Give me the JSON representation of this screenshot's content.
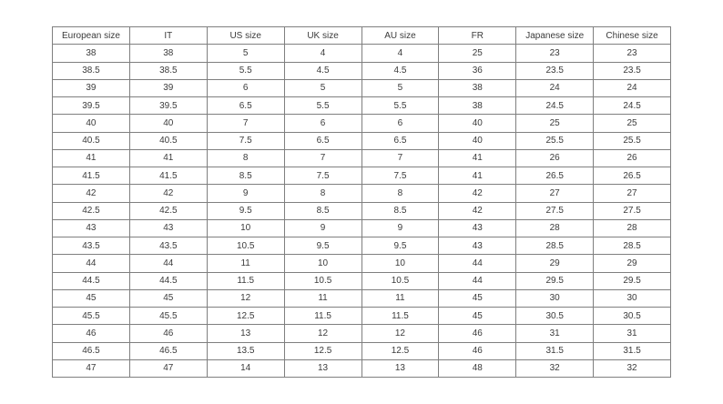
{
  "page": {
    "background": "#ffffff"
  },
  "table": {
    "name": "shoe-size-conversion-table",
    "border_color": "#7f7f7f",
    "text_color": "#3b3b3b",
    "headers": [
      "European size",
      "IT",
      "US size",
      "UK size",
      "AU size",
      "FR",
      "Japanese size",
      "Chinese size"
    ],
    "rows": [
      [
        "38",
        "38",
        "5",
        "4",
        "4",
        "25",
        "23",
        "23"
      ],
      [
        "38.5",
        "38.5",
        "5.5",
        "4.5",
        "4.5",
        "36",
        "23.5",
        "23.5"
      ],
      [
        "39",
        "39",
        "6",
        "5",
        "5",
        "38",
        "24",
        "24"
      ],
      [
        "39.5",
        "39.5",
        "6.5",
        "5.5",
        "5.5",
        "38",
        "24.5",
        "24.5"
      ],
      [
        "40",
        "40",
        "7",
        "6",
        "6",
        "40",
        "25",
        "25"
      ],
      [
        "40.5",
        "40.5",
        "7.5",
        "6.5",
        "6.5",
        "40",
        "25.5",
        "25.5"
      ],
      [
        "41",
        "41",
        "8",
        "7",
        "7",
        "41",
        "26",
        "26"
      ],
      [
        "41.5",
        "41.5",
        "8.5",
        "7.5",
        "7.5",
        "41",
        "26.5",
        "26.5"
      ],
      [
        "42",
        "42",
        "9",
        "8",
        "8",
        "42",
        "27",
        "27"
      ],
      [
        "42.5",
        "42.5",
        "9.5",
        "8.5",
        "8.5",
        "42",
        "27.5",
        "27.5"
      ],
      [
        "43",
        "43",
        "10",
        "9",
        "9",
        "43",
        "28",
        "28"
      ],
      [
        "43.5",
        "43.5",
        "10.5",
        "9.5",
        "9.5",
        "43",
        "28.5",
        "28.5"
      ],
      [
        "44",
        "44",
        "11",
        "10",
        "10",
        "44",
        "29",
        "29"
      ],
      [
        "44.5",
        "44.5",
        "11.5",
        "10.5",
        "10.5",
        "44",
        "29.5",
        "29.5"
      ],
      [
        "45",
        "45",
        "12",
        "11",
        "11",
        "45",
        "30",
        "30"
      ],
      [
        "45.5",
        "45.5",
        "12.5",
        "11.5",
        "11.5",
        "45",
        "30.5",
        "30.5"
      ],
      [
        "46",
        "46",
        "13",
        "12",
        "12",
        "46",
        "31",
        "31"
      ],
      [
        "46.5",
        "46.5",
        "13.5",
        "12.5",
        "12.5",
        "46",
        "31.5",
        "31.5"
      ],
      [
        "47",
        "47",
        "14",
        "13",
        "13",
        "48",
        "32",
        "32"
      ]
    ]
  }
}
